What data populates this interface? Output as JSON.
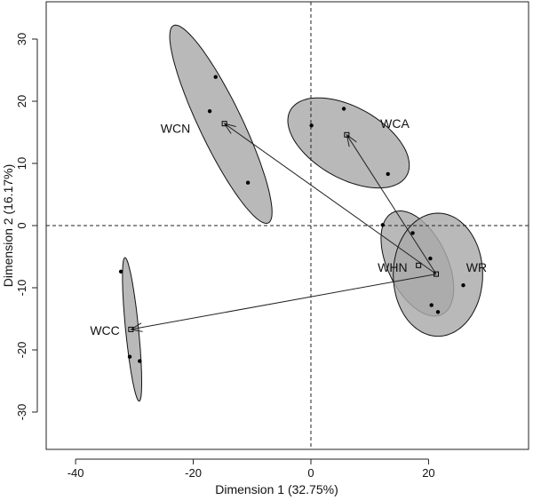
{
  "chart_data": {
    "type": "scatter",
    "xlabel": "Dimension 1 (32.75%)",
    "ylabel": "Dimension 2 (16.17%)",
    "xlim": [
      -45,
      37
    ],
    "ylim": [
      -36,
      36
    ],
    "xticks": [
      -40,
      -20,
      0,
      20
    ],
    "yticks": [
      -30,
      -20,
      -10,
      0,
      10,
      20,
      30
    ],
    "reference_lines": {
      "x": 0,
      "y": 0,
      "style": "dashed"
    },
    "ellipse_fill": "#a9a9a9",
    "groups": [
      {
        "name": "WCN",
        "centroid": [
          -14.7,
          16.4
        ],
        "points": [
          [
            -16.2,
            23.9
          ],
          [
            -17.2,
            18.4
          ],
          [
            -10.7,
            6.9
          ]
        ],
        "ellipse": {
          "cx": -15.3,
          "cy": 16.3,
          "rx": 17.8,
          "ry": 3.6,
          "angle_deg": -63
        }
      },
      {
        "name": "WCA",
        "centroid": [
          6.1,
          14.6
        ],
        "points": [
          [
            0.1,
            16.1
          ],
          [
            5.6,
            18.8
          ],
          [
            13.1,
            8.3
          ]
        ],
        "ellipse": {
          "cx": 6.4,
          "cy": 13.3,
          "rx": 11.2,
          "ry": 5.8,
          "angle_deg": -27
        }
      },
      {
        "name": "WHN",
        "centroid": [
          18.3,
          -6.4
        ],
        "points": [
          [
            12.2,
            0.1
          ],
          [
            17.3,
            -1.2
          ],
          [
            20.3,
            -5.3
          ],
          [
            20.5,
            -12.8
          ]
        ],
        "ellipse": {
          "cx": 18.1,
          "cy": -6.1,
          "rx": 9.2,
          "ry": 5.0,
          "angle_deg": -62
        }
      },
      {
        "name": "WR",
        "centroid": [
          21.3,
          -7.8
        ],
        "points": [
          [
            21.6,
            -13.9
          ],
          [
            25.9,
            -9.6
          ]
        ],
        "ellipse": {
          "cx": 21.6,
          "cy": -7.9,
          "rx": 9.9,
          "ry": 7.6,
          "angle_deg": 90
        }
      },
      {
        "name": "WCC",
        "centroid": [
          -30.6,
          -16.7
        ],
        "points": [
          [
            -32.3,
            -7.4
          ],
          [
            -30.8,
            -21.1
          ],
          [
            -29.1,
            -21.8
          ]
        ],
        "ellipse": {
          "cx": -30.4,
          "cy": -16.7,
          "rx": 11.6,
          "ry": 1.1,
          "angle_deg": -84
        }
      }
    ],
    "arrows": [
      {
        "from": [
          21.3,
          -7.8
        ],
        "to": [
          -14.7,
          16.4
        ]
      },
      {
        "from": [
          21.3,
          -7.8
        ],
        "to": [
          6.1,
          14.6
        ]
      },
      {
        "from": [
          21.3,
          -7.8
        ],
        "to": [
          -30.6,
          -16.7
        ]
      }
    ]
  }
}
